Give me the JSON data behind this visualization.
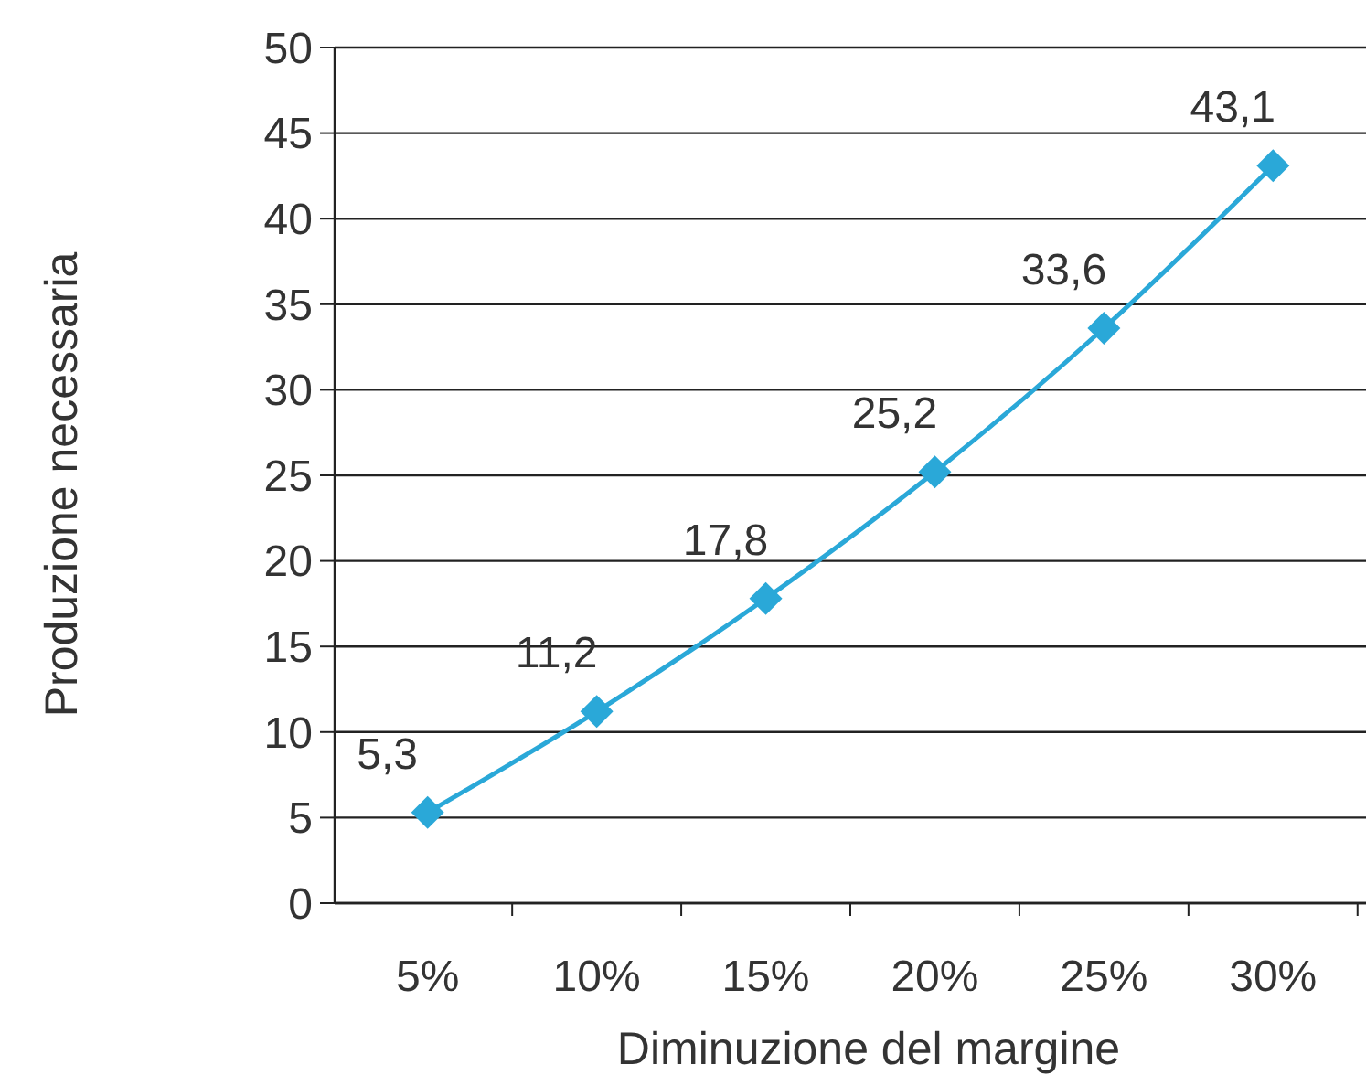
{
  "chart_data": {
    "type": "line",
    "xlabel": "Diminuzione del margine",
    "ylabel": "Produzione necessaria",
    "categories": [
      "5%",
      "10%",
      "15%",
      "20%",
      "25%",
      "30%"
    ],
    "series": [
      {
        "color": "#2aa8d8",
        "values": [
          5.3,
          11.2,
          17.8,
          25.2,
          33.6,
          43.1
        ],
        "value_labels": [
          "5,3",
          "11,2",
          "17,8",
          "25,2",
          "33,6",
          "43,1"
        ]
      }
    ],
    "ylim": [
      0,
      50
    ],
    "yticks": [
      0,
      5,
      10,
      15,
      20,
      25,
      30,
      35,
      40,
      45,
      50
    ],
    "grid": "y",
    "marker": "diamond",
    "line_style": "solid"
  }
}
